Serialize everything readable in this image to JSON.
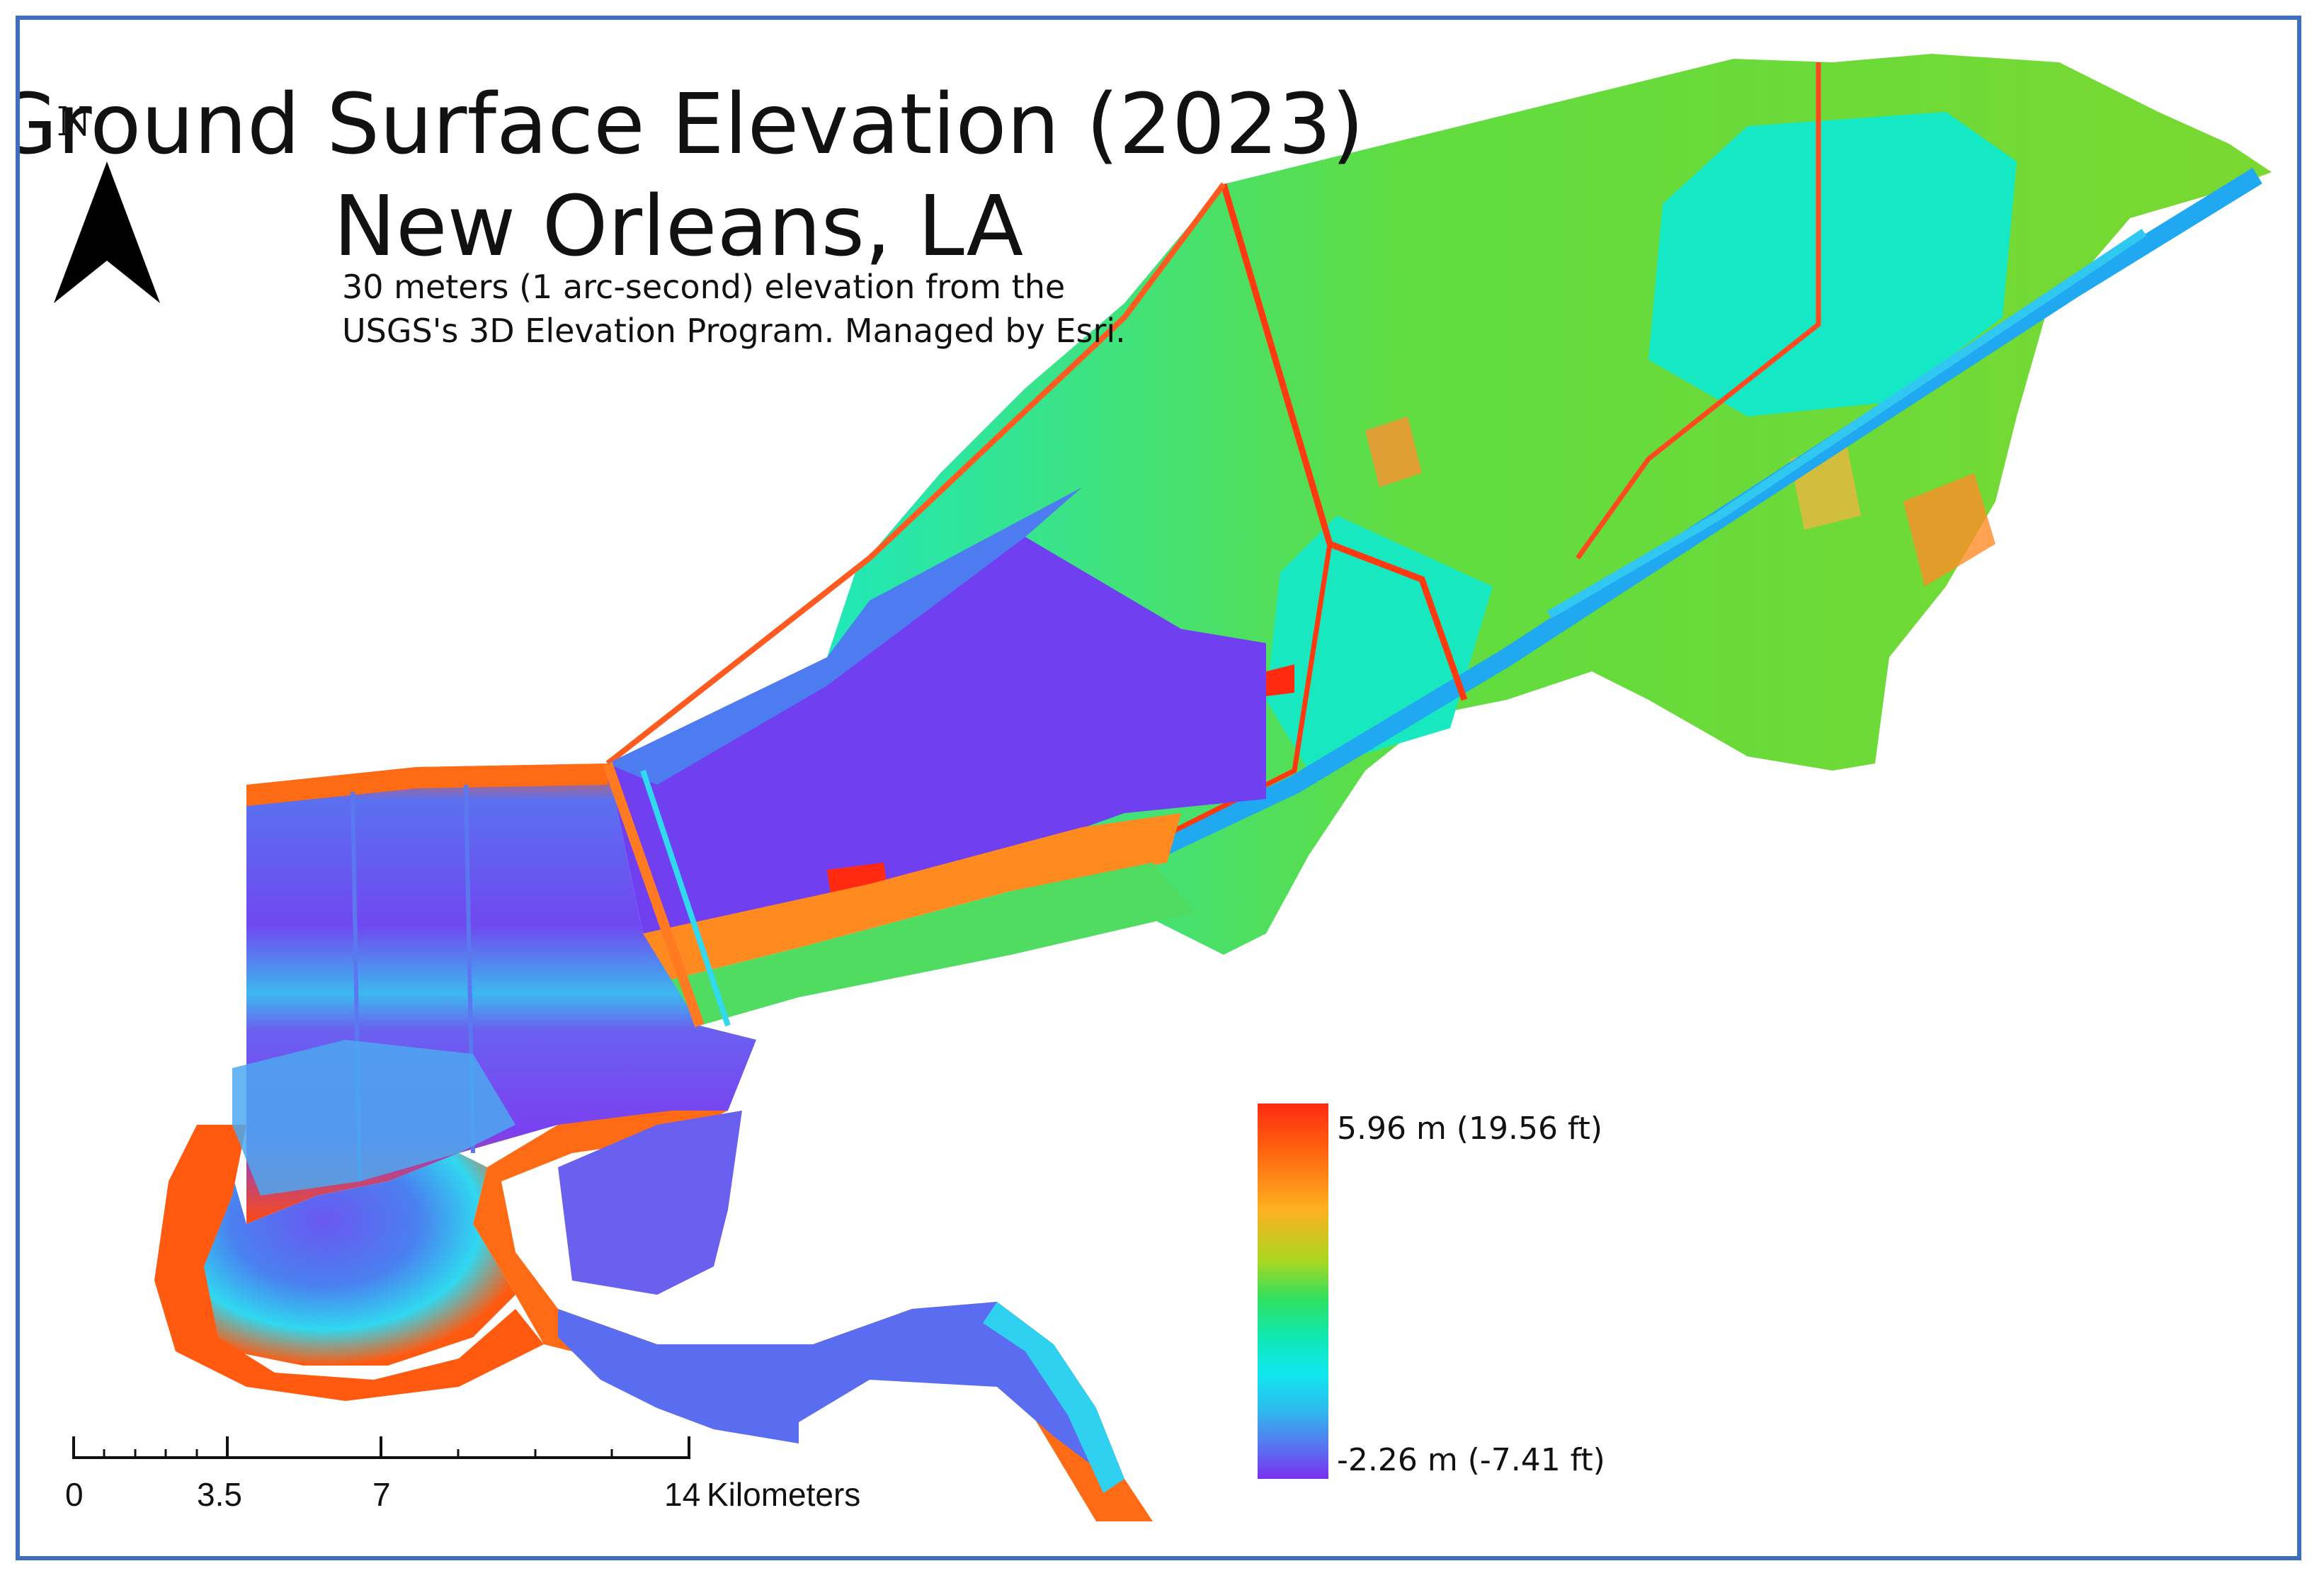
{
  "title": {
    "line1": "Ground Surface Elevation (2023)",
    "line2": "New Orleans, LA"
  },
  "subtitle": {
    "line1": "30 meters (1 arc-second) elevation from the",
    "line2": "USGS's 3D Elevation Program. Managed by Esri."
  },
  "north_arrow": {
    "letter": "N",
    "icon": "north-arrow-icon"
  },
  "legend": {
    "max_label": "5.96 m (19.56 ft)",
    "min_label": "-2.26 m (-7.41 ft)",
    "ramp_colors": [
      "#ff2a10",
      "#ff6a10",
      "#ffb020",
      "#a8d820",
      "#30e060",
      "#10e8b0",
      "#10e8f0",
      "#30b8f0",
      "#5a70f0",
      "#7a30f0"
    ]
  },
  "scale_bar": {
    "ticks": [
      "0",
      "3.5",
      "7",
      "14"
    ],
    "unit": "Kilometers"
  },
  "colors": {
    "frame": "#3e6fbf",
    "high": "#ff3b10",
    "mid_high": "#ff9a20",
    "mid": "#6ee030",
    "mid_low": "#10e8c8",
    "low_cyan": "#10d8f0",
    "low_blue": "#4c88f0",
    "lowest": "#7040f0"
  }
}
